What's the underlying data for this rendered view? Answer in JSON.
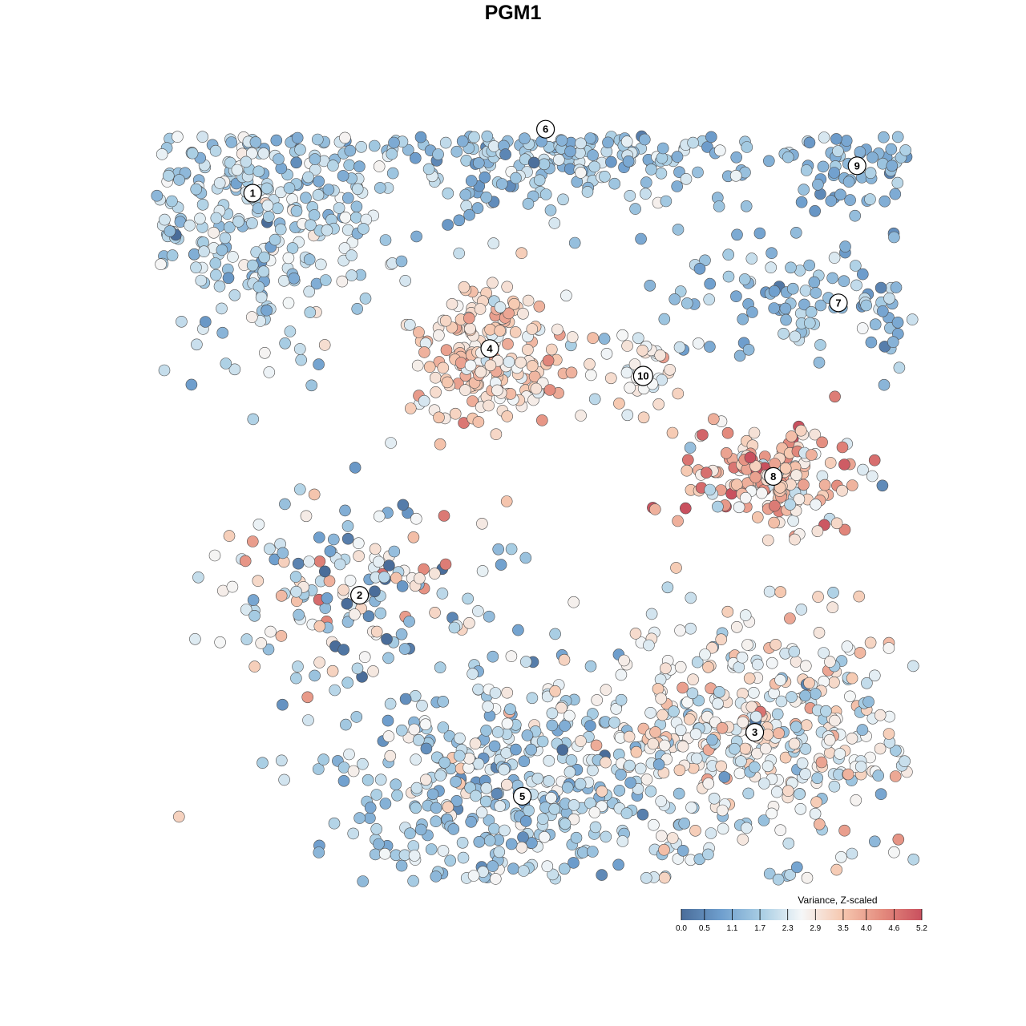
{
  "title": "PGM1",
  "chart_data": {
    "type": "scatter",
    "title": "PGM1",
    "xlabel": "",
    "ylabel": "",
    "grid": false,
    "legend_placement": "bottom-right",
    "colorbar": {
      "title": "Variance, Z-scaled",
      "min": 0.0,
      "max": 5.2,
      "ticks": [
        "0.0",
        "0.5",
        "1.1",
        "1.7",
        "2.3",
        "2.9",
        "3.5",
        "4.0",
        "4.6",
        "5.2"
      ],
      "colors": [
        "#4a6d9a",
        "#6f9fce",
        "#a9cee4",
        "#f5f7f8",
        "#f6c9b1",
        "#e48c7e",
        "#c9505e"
      ]
    },
    "clusters": [
      {
        "label": "1",
        "x": -5.6,
        "y": 7.0,
        "n": 420,
        "sx": 1.6,
        "sy": 1.8,
        "mean": 1.9,
        "sd": 0.5
      },
      {
        "label": "6",
        "x": 0.7,
        "y": 8.4,
        "n": 560,
        "sx": 2.6,
        "sy": 0.9,
        "mean": 1.6,
        "sd": 0.5
      },
      {
        "label": "9",
        "x": 7.4,
        "y": 7.6,
        "n": 80,
        "sx": 1.1,
        "sy": 0.5,
        "mean": 1.3,
        "sd": 0.4
      },
      {
        "label": "7",
        "x": 7.0,
        "y": 4.6,
        "n": 130,
        "sx": 1.9,
        "sy": 0.6,
        "mean": 1.4,
        "sd": 0.5
      },
      {
        "label": "4",
        "x": -0.5,
        "y": 3.6,
        "n": 200,
        "sx": 0.9,
        "sy": 0.8,
        "mean": 3.2,
        "sd": 0.5
      },
      {
        "label": "10",
        "x": 2.8,
        "y": 3.0,
        "n": 40,
        "sx": 0.5,
        "sy": 0.5,
        "mean": 2.7,
        "sd": 0.5
      },
      {
        "label": "8",
        "x": 5.6,
        "y": 0.8,
        "n": 180,
        "sx": 1.0,
        "sy": 0.6,
        "mean": 3.4,
        "sd": 0.9
      },
      {
        "label": "2",
        "x": -3.3,
        "y": -1.8,
        "n": 160,
        "sx": 1.6,
        "sy": 1.1,
        "mean": 2.2,
        "sd": 1.1
      },
      {
        "label": "3",
        "x": 5.2,
        "y": -4.8,
        "n": 420,
        "sx": 1.9,
        "sy": 1.2,
        "mean": 2.6,
        "sd": 0.7
      },
      {
        "label": "5",
        "x": 0.2,
        "y": -6.2,
        "n": 460,
        "sx": 2.1,
        "sy": 1.5,
        "mean": 1.7,
        "sd": 0.6
      }
    ]
  }
}
